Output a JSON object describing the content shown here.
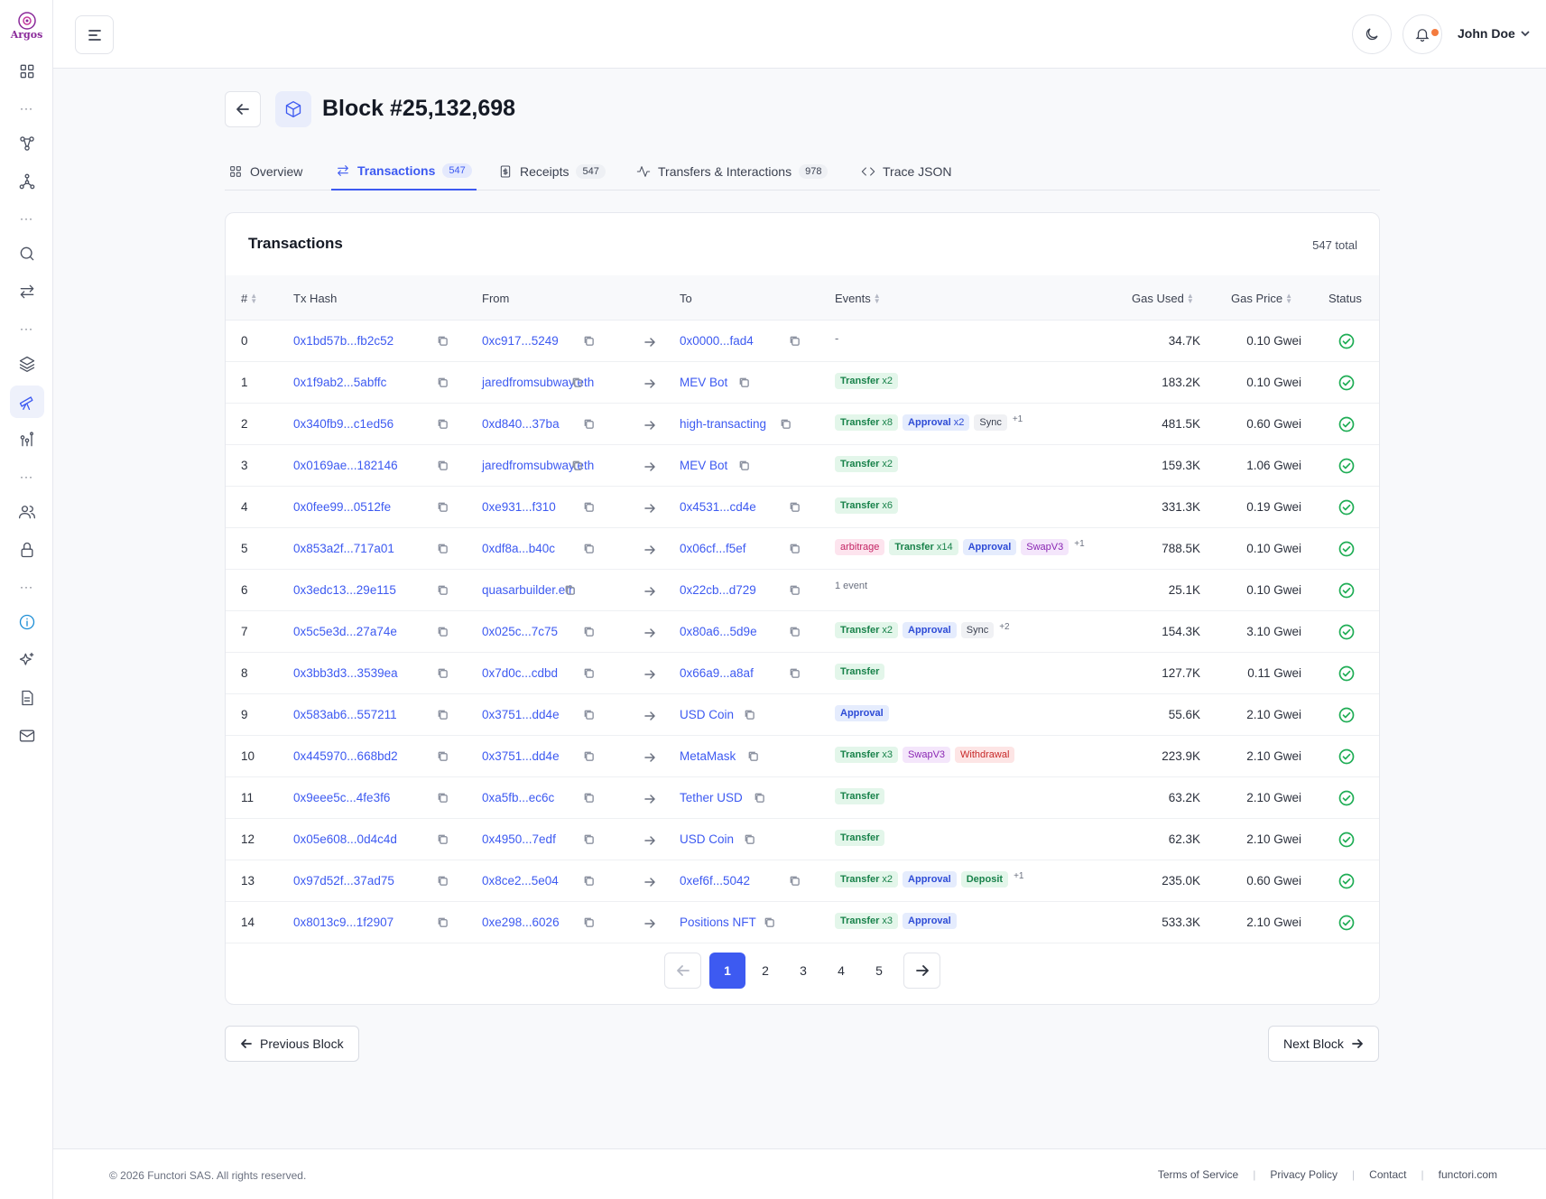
{
  "app": {
    "logo_text": "Argos"
  },
  "topbar": {
    "user_name": "John Doe"
  },
  "header": {
    "title": "Block #25,132,698"
  },
  "tabs": [
    {
      "label": "Overview",
      "badge": ""
    },
    {
      "label": "Transactions",
      "badge": "547"
    },
    {
      "label": "Receipts",
      "badge": "547"
    },
    {
      "label": "Transfers & Interactions",
      "badge": "978"
    },
    {
      "label": "Trace JSON",
      "badge": ""
    }
  ],
  "table": {
    "title": "Transactions",
    "total": "547 total",
    "columns": [
      "#",
      "Tx Hash",
      "From",
      "To",
      "Events",
      "Gas Used",
      "Gas Price",
      "Status"
    ],
    "rows": [
      {
        "idx": "0",
        "hash": "0x1bd57b...fb2c52",
        "from": "0xc917...5249",
        "to": "0x0000...fad4",
        "gas": "34.7K",
        "price": "0.10 Gwei"
      },
      {
        "idx": "1",
        "hash": "0x1f9ab2...5abffc",
        "from": "jaredfromsubway.eth",
        "to": "MEV Bot",
        "gas": "183.2K",
        "price": "0.10 Gwei"
      },
      {
        "idx": "2",
        "hash": "0x340fb9...c1ed56",
        "from": "0xd840...37ba",
        "to": "high-transacting",
        "gas": "481.5K",
        "price": "0.60 Gwei"
      },
      {
        "idx": "3",
        "hash": "0x0169ae...182146",
        "from": "jaredfromsubway.eth",
        "to": "MEV Bot",
        "gas": "159.3K",
        "price": "1.06 Gwei"
      },
      {
        "idx": "4",
        "hash": "0x0fee99...0512fe",
        "from": "0xe931...f310",
        "to": "0x4531...cd4e",
        "gas": "331.3K",
        "price": "0.19 Gwei"
      },
      {
        "idx": "5",
        "hash": "0x853a2f...717a01",
        "from": "0xdf8a...b40c",
        "to": "0x06cf...f5ef",
        "gas": "788.5K",
        "price": "0.10 Gwei"
      },
      {
        "idx": "6",
        "hash": "0x3edc13...29e115",
        "from": "quasarbuilder.eth",
        "to": "0x22cb...d729",
        "gas": "25.1K",
        "price": "0.10 Gwei"
      },
      {
        "idx": "7",
        "hash": "0x5c5e3d...27a74e",
        "from": "0x025c...7c75",
        "to": "0x80a6...5d9e",
        "gas": "154.3K",
        "price": "3.10 Gwei"
      },
      {
        "idx": "8",
        "hash": "0x3bb3d3...3539ea",
        "from": "0x7d0c...cdbd",
        "to": "0x66a9...a8af",
        "gas": "127.7K",
        "price": "0.11 Gwei"
      },
      {
        "idx": "9",
        "hash": "0x583ab6...557211",
        "from": "0x3751...dd4e",
        "to": "USD Coin",
        "gas": "55.6K",
        "price": "2.10 Gwei"
      },
      {
        "idx": "10",
        "hash": "0x445970...668bd2",
        "from": "0x3751...dd4e",
        "to": "MetaMask",
        "gas": "223.9K",
        "price": "2.10 Gwei"
      },
      {
        "idx": "11",
        "hash": "0x9eee5c...4fe3f6",
        "from": "0xa5fb...ec6c",
        "to": "Tether USD",
        "gas": "63.2K",
        "price": "2.10 Gwei"
      },
      {
        "idx": "12",
        "hash": "0x05e608...0d4c4d",
        "from": "0x4950...7edf",
        "to": "USD Coin",
        "gas": "62.3K",
        "price": "2.10 Gwei"
      },
      {
        "idx": "13",
        "hash": "0x97d52f...37ad75",
        "from": "0x8ce2...5e04",
        "to": "0xef6f...5042",
        "gas": "235.0K",
        "price": "0.60 Gwei"
      },
      {
        "idx": "14",
        "hash": "0x8013c9...1f2907",
        "from": "0xe298...6026",
        "to": "Positions NFT",
        "gas": "533.3K",
        "price": "2.10 Gwei"
      }
    ],
    "events": {
      "r0": {
        "dash": "-"
      },
      "r1": {
        "t1": "Transfer",
        "c1": "x2"
      },
      "r2": {
        "t1": "Transfer",
        "c1": "x8",
        "t2": "Approval",
        "c2": "x2",
        "t3": "Sync",
        "more": "+1"
      },
      "r3": {
        "t1": "Transfer",
        "c1": "x2"
      },
      "r4": {
        "t1": "Transfer",
        "c1": "x6"
      },
      "r5": {
        "t0": "arbitrage",
        "t1": "Transfer",
        "c1": "x14",
        "t2": "Approval",
        "t3": "SwapV3",
        "more": "+1"
      },
      "r6": {
        "plain": "1 event"
      },
      "r7": {
        "t1": "Transfer",
        "c1": "x2",
        "t2": "Approval",
        "t3": "Sync",
        "more": "+2"
      },
      "r8": {
        "t1": "Transfer"
      },
      "r9": {
        "t1": "Approval"
      },
      "r10": {
        "t1": "Transfer",
        "c1": "x3",
        "t2": "SwapV3",
        "t3": "Withdrawal"
      },
      "r11": {
        "t1": "Transfer"
      },
      "r12": {
        "t1": "Transfer"
      },
      "r13": {
        "t1": "Transfer",
        "c1": "x2",
        "t2": "Approval",
        "t3": "Deposit",
        "more": "+1"
      },
      "r14": {
        "t1": "Transfer",
        "c1": "x3",
        "t2": "Approval"
      }
    }
  },
  "pagination": {
    "pages": [
      "1",
      "2",
      "3",
      "4",
      "5"
    ],
    "current": "1"
  },
  "block_nav": {
    "prev": "Previous Block",
    "next": "Next Block"
  },
  "footer": {
    "copyright": "© 2026 Functori SAS. All rights reserved.",
    "links": [
      "Terms of Service",
      "Privacy Policy",
      "Contact",
      "functori.com"
    ]
  },
  "colors": {
    "accent": "#3d5af1",
    "success": "#1fad55",
    "notification": "#f47b3e"
  }
}
